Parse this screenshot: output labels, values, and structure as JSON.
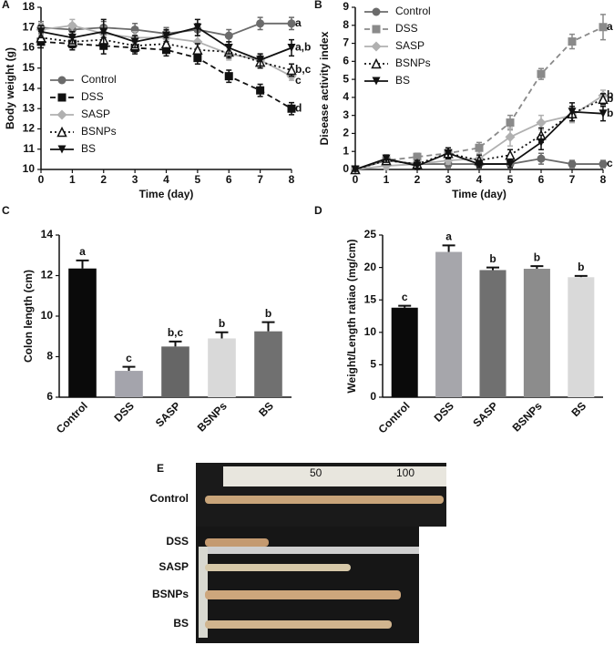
{
  "chart_data": [
    {
      "panel": "A",
      "type": "line",
      "x_label": "Time (day)",
      "y_label": "Body weight (g)",
      "x": [
        0,
        1,
        2,
        3,
        4,
        5,
        6,
        7,
        8
      ],
      "xlim": [
        0,
        8
      ],
      "xticks": [
        0,
        1,
        2,
        3,
        4,
        5,
        6,
        7,
        8
      ],
      "ylim": [
        10,
        18
      ],
      "yticks": [
        10,
        11,
        12,
        13,
        14,
        15,
        16,
        17,
        18
      ],
      "legend": "center left",
      "series": [
        {
          "name": "Control",
          "color": "#6b6b6b",
          "marker": "circle",
          "dash": "solid",
          "label": "a",
          "values": [
            17.0,
            16.9,
            17.0,
            16.9,
            16.7,
            16.9,
            16.6,
            17.2,
            17.2
          ],
          "errors": [
            0.3,
            0.3,
            0.3,
            0.3,
            0.3,
            0.3,
            0.3,
            0.3,
            0.3
          ]
        },
        {
          "name": "DSS",
          "color": "#111111",
          "marker": "square",
          "dash": "dashed",
          "label": "d",
          "values": [
            16.3,
            16.2,
            16.1,
            16.0,
            15.9,
            15.5,
            14.6,
            13.9,
            13.0
          ],
          "errors": [
            0.3,
            0.3,
            0.4,
            0.3,
            0.3,
            0.3,
            0.3,
            0.3,
            0.3
          ]
        },
        {
          "name": "SASP",
          "color": "#b0b0b0",
          "marker": "diamond",
          "dash": "solid",
          "label": "c",
          "values": [
            16.9,
            17.1,
            16.7,
            16.5,
            16.5,
            16.3,
            15.7,
            15.4,
            14.6
          ],
          "errors": [
            0.3,
            0.3,
            0.3,
            0.3,
            0.3,
            0.3,
            0.3,
            0.3,
            0.2
          ]
        },
        {
          "name": "BSNPs",
          "color": "#111111",
          "marker": "triangle",
          "dash": "dotted",
          "label": "b,c",
          "values": [
            16.5,
            16.3,
            16.4,
            16.1,
            16.2,
            15.9,
            15.8,
            15.3,
            14.9
          ],
          "errors": [
            0.3,
            0.3,
            0.3,
            0.3,
            0.3,
            0.3,
            0.3,
            0.3,
            0.3
          ]
        },
        {
          "name": "BS",
          "color": "#111111",
          "marker": "triangle-down",
          "dash": "solid",
          "label": "a,b",
          "values": [
            16.8,
            16.5,
            16.8,
            16.3,
            16.6,
            17.0,
            16.0,
            15.4,
            16.0
          ],
          "errors": [
            0.3,
            0.3,
            0.6,
            0.3,
            0.3,
            0.4,
            0.3,
            0.3,
            0.4
          ]
        }
      ]
    },
    {
      "panel": "B",
      "type": "line",
      "x_label": "Time (day)",
      "y_label": "Disease activity index",
      "x": [
        0,
        1,
        2,
        3,
        4,
        5,
        6,
        7,
        8
      ],
      "xlim": [
        0,
        8
      ],
      "xticks": [
        0,
        1,
        2,
        3,
        4,
        5,
        6,
        7,
        8
      ],
      "ylim": [
        0,
        9
      ],
      "yticks": [
        0,
        1,
        2,
        3,
        4,
        5,
        6,
        7,
        8,
        9
      ],
      "legend": "upper left",
      "series": [
        {
          "name": "Control",
          "color": "#6b6b6b",
          "marker": "circle",
          "dash": "solid",
          "label": "c",
          "values": [
            0,
            0.5,
            0.3,
            0.3,
            0.3,
            0.3,
            0.6,
            0.3,
            0.3
          ],
          "errors": [
            0.1,
            0.2,
            0.2,
            0.2,
            0.2,
            0.2,
            0.3,
            0.2,
            0.2
          ]
        },
        {
          "name": "DSS",
          "color": "#8a8a8a",
          "marker": "square",
          "dash": "dashed",
          "label": "a",
          "values": [
            0,
            0.5,
            0.7,
            0.9,
            1.2,
            2.6,
            5.3,
            7.1,
            7.9
          ],
          "errors": [
            0.1,
            0.2,
            0.2,
            0.3,
            0.3,
            0.4,
            0.3,
            0.4,
            0.7
          ]
        },
        {
          "name": "SASP",
          "color": "#b0b0b0",
          "marker": "diamond",
          "dash": "solid",
          "label": "b",
          "values": [
            0,
            0.2,
            0.3,
            0.5,
            0.6,
            1.8,
            2.6,
            3.0,
            4.1
          ],
          "errors": [
            0.1,
            0.2,
            0.2,
            0.2,
            0.3,
            0.5,
            0.4,
            0.4,
            0.3
          ]
        },
        {
          "name": "BSNPs",
          "color": "#111111",
          "marker": "triangle",
          "dash": "dotted",
          "label": "b",
          "values": [
            0,
            0.5,
            0.3,
            0.9,
            0.5,
            0.8,
            1.9,
            3.1,
            3.9
          ],
          "errors": [
            0.1,
            0.2,
            0.2,
            0.3,
            0.3,
            0.3,
            0.4,
            0.4,
            0.3
          ]
        },
        {
          "name": "BS",
          "color": "#111111",
          "marker": "triangle-down",
          "dash": "solid",
          "label": "b",
          "values": [
            0,
            0.6,
            0.2,
            0.9,
            0.3,
            0.3,
            1.5,
            3.2,
            3.1
          ],
          "errors": [
            0.1,
            0.2,
            0.2,
            0.3,
            0.2,
            0.2,
            0.4,
            0.5,
            0.4
          ]
        }
      ]
    },
    {
      "panel": "C",
      "type": "bar",
      "y_label": "Colon length (cm)",
      "categories": [
        "Control",
        "DSS",
        "SASP",
        "BSNPs",
        "BS"
      ],
      "values": [
        12.35,
        7.3,
        8.5,
        8.9,
        9.25
      ],
      "errors": [
        0.4,
        0.2,
        0.25,
        0.3,
        0.45
      ],
      "value_labels": [
        "a",
        "c",
        "b,c",
        "b",
        "b"
      ],
      "colors": [
        "#0a0a0a",
        "#a4a4ac",
        "#666666",
        "#d9d9d9",
        "#707070"
      ],
      "ylim": [
        6,
        14
      ],
      "yticks": [
        6,
        8,
        10,
        12,
        14
      ]
    },
    {
      "panel": "D",
      "type": "bar",
      "y_label": "Weight/Length ratiao (mg/cm)",
      "categories": [
        "Control",
        "DSS",
        "SASP",
        "BSNPs",
        "BS"
      ],
      "values": [
        13.8,
        22.4,
        19.6,
        19.8,
        18.5
      ],
      "errors": [
        0.3,
        1.0,
        0.4,
        0.4,
        0.2
      ],
      "value_labels": [
        "c",
        "a",
        "b",
        "b",
        "b"
      ],
      "colors": [
        "#0a0a0a",
        "#a6a6ab",
        "#707070",
        "#8c8c8c",
        "#d9d9d9"
      ],
      "ylim": [
        0,
        25
      ],
      "yticks": [
        0,
        5,
        10,
        15,
        20,
        25
      ]
    }
  ],
  "photo": {
    "panel": "E",
    "rows": [
      "Control",
      "DSS",
      "SASP",
      "BSNPs",
      "BS"
    ],
    "ruler_labels": [
      "50",
      "100"
    ]
  }
}
